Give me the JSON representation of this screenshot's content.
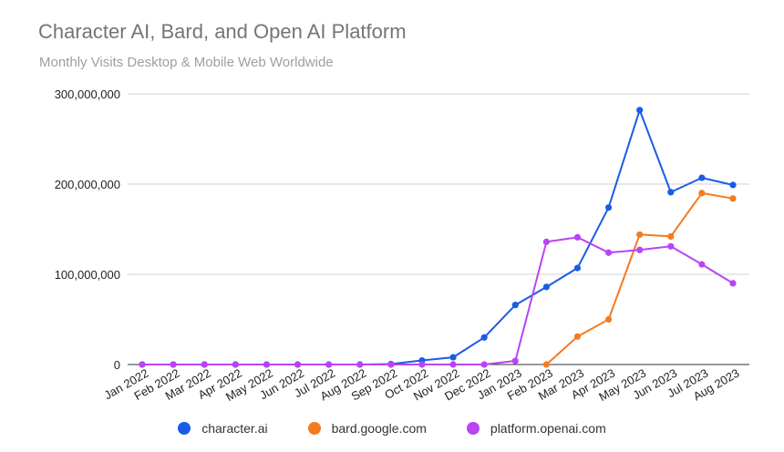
{
  "chart_data": {
    "type": "line",
    "title": "Character AI, Bard, and Open AI Platform",
    "subtitle": "Monthly Visits Desktop & Mobile Web Worldwide",
    "categories": [
      "Jan 2022",
      "Feb 2022",
      "Mar 2022",
      "Apr 2022",
      "May 2022",
      "Jun 2022",
      "Jul 2022",
      "Aug 2022",
      "Sep 2022",
      "Oct 2022",
      "Nov 2022",
      "Dec 2022",
      "Jan 2023",
      "Feb 2023",
      "Mar 2023",
      "Apr 2023",
      "May 2023",
      "Jun 2023",
      "Jul 2023",
      "Aug 2023"
    ],
    "y_ticks": [
      0,
      100000000,
      200000000,
      300000000
    ],
    "y_tick_labels": [
      "0",
      "100,000,000",
      "200,000,000",
      "300,000,000"
    ],
    "ylim": [
      0,
      300000000
    ],
    "grid": true,
    "legend_position": "bottom",
    "series": [
      {
        "name": "character.ai",
        "color": "#1a5ce6",
        "values": [
          0,
          0,
          0,
          0,
          0,
          0,
          0,
          0,
          500000,
          4500000,
          8000000,
          30000000,
          66000000,
          86000000,
          107000000,
          174000000,
          282000000,
          191000000,
          207000000,
          199000000
        ]
      },
      {
        "name": "bard.google.com",
        "color": "#f47b20",
        "values": [
          null,
          null,
          null,
          null,
          null,
          null,
          null,
          null,
          null,
          null,
          null,
          null,
          null,
          0,
          31000000,
          50000000,
          144000000,
          142000000,
          190000000,
          184000000
        ]
      },
      {
        "name": "platform.openai.com",
        "color": "#b944f2",
        "values": [
          0,
          0,
          0,
          0,
          0,
          0,
          0,
          0,
          0,
          0,
          0,
          0,
          4000000,
          136000000,
          141000000,
          124000000,
          127000000,
          131000000,
          111000000,
          90000000
        ]
      }
    ]
  }
}
